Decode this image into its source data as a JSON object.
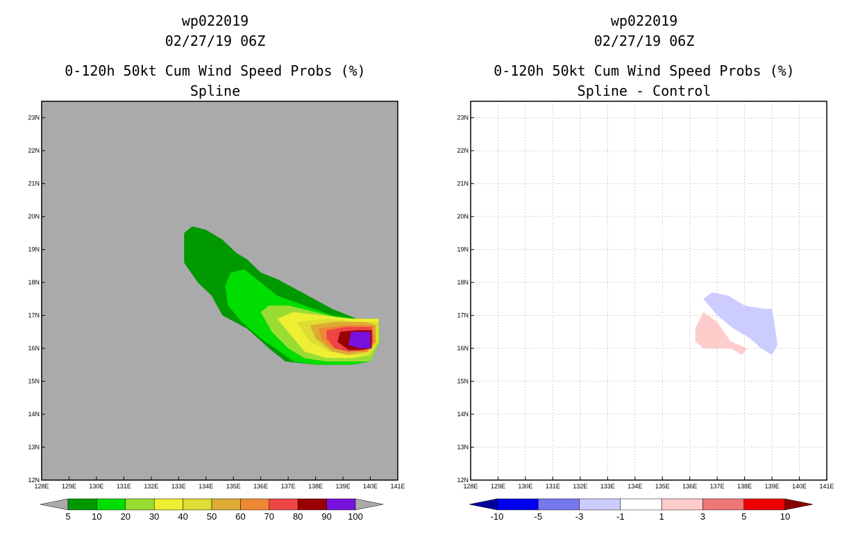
{
  "left_panel": {
    "title_line1": "wp022019",
    "title_line2": "02/27/19 06Z",
    "subtitle_line1": "0-120h 50kt Cum Wind Speed Probs (%)",
    "subtitle_line2": "Spline",
    "background_color": "#aaaaaa"
  },
  "right_panel": {
    "title_line1": "wp022019",
    "title_line2": "02/27/19 06Z",
    "subtitle_line1": "0-120h 50kt Cum Wind Speed Probs (%)",
    "subtitle_line2": "Spline - Control",
    "background_color": "#ffffff"
  },
  "chart_data": [
    {
      "type": "contour-map",
      "title": "wp022019 02/27/19 06Z",
      "subtitle": "0-120h 50kt Cum Wind Speed Probs (%) Spline",
      "x_ticks": [
        "128E",
        "129E",
        "130E",
        "131E",
        "132E",
        "133E",
        "134E",
        "135E",
        "136E",
        "137E",
        "138E",
        "139E",
        "140E",
        "141E"
      ],
      "y_ticks": [
        "12N",
        "13N",
        "14N",
        "15N",
        "16N",
        "17N",
        "18N",
        "19N",
        "20N",
        "21N",
        "22N",
        "23N"
      ],
      "xlim": [
        128,
        141
      ],
      "ylim": [
        12,
        23.5
      ],
      "colorbar": {
        "labels": [
          "5",
          "10",
          "20",
          "30",
          "40",
          "50",
          "60",
          "70",
          "80",
          "90",
          "100"
        ],
        "colors": [
          "#009900",
          "#00dd00",
          "#99dd33",
          "#eeee33",
          "#dddd33",
          "#ddaa33",
          "#ee8833",
          "#ee4444",
          "#990000",
          "#7711dd"
        ],
        "under_color": "#aaaaaa",
        "over_color": "#aaaaaa"
      },
      "contours": [
        {
          "level": 5,
          "color": "#009900",
          "points": [
            [
              133.2,
              18.6
            ],
            [
              133.2,
              19.5
            ],
            [
              133.5,
              19.7
            ],
            [
              134,
              19.6
            ],
            [
              134.6,
              19.3
            ],
            [
              135.1,
              18.9
            ],
            [
              135.5,
              18.7
            ],
            [
              136,
              18.3
            ],
            [
              136.6,
              18.1
            ],
            [
              137.5,
              17.7
            ],
            [
              138.6,
              17.2
            ],
            [
              139.5,
              16.9
            ],
            [
              140.3,
              16.9
            ],
            [
              140.35,
              16.2
            ],
            [
              140,
              15.6
            ],
            [
              139.3,
              15.5
            ],
            [
              138,
              15.5
            ],
            [
              136.9,
              15.6
            ],
            [
              136.3,
              16
            ],
            [
              135.5,
              16.6
            ],
            [
              134.6,
              17
            ],
            [
              134.2,
              17.6
            ],
            [
              133.7,
              18
            ]
          ]
        },
        {
          "level": 10,
          "color": "#00dd00",
          "points": [
            [
              134.7,
              17.9
            ],
            [
              134.9,
              18.3
            ],
            [
              135.4,
              18.4
            ],
            [
              136,
              18
            ],
            [
              136.6,
              17.6
            ],
            [
              137.6,
              17.3
            ],
            [
              138.6,
              17
            ],
            [
              139.5,
              16.9
            ],
            [
              140.3,
              16.9
            ],
            [
              140.35,
              16.2
            ],
            [
              140,
              15.6
            ],
            [
              139.3,
              15.5
            ],
            [
              138,
              15.5
            ],
            [
              137.2,
              15.6
            ],
            [
              136.7,
              15.9
            ],
            [
              136,
              16.3
            ],
            [
              135.3,
              16.8
            ],
            [
              134.8,
              17.3
            ]
          ]
        },
        {
          "level": 20,
          "color": "#99dd33",
          "points": [
            [
              136,
              17.1
            ],
            [
              136.3,
              17.3
            ],
            [
              137,
              17.3
            ],
            [
              138,
              17.1
            ],
            [
              139,
              16.9
            ],
            [
              140.3,
              16.9
            ],
            [
              140.35,
              16.2
            ],
            [
              140,
              15.6
            ],
            [
              139.3,
              15.6
            ],
            [
              138.4,
              15.6
            ],
            [
              137.6,
              15.7
            ],
            [
              137,
              16
            ],
            [
              136.4,
              16.5
            ]
          ]
        },
        {
          "level": 30,
          "color": "#eeee33",
          "points": [
            [
              136.6,
              16.9
            ],
            [
              137.2,
              17.1
            ],
            [
              138.2,
              17
            ],
            [
              139.3,
              16.9
            ],
            [
              140.3,
              16.9
            ],
            [
              140.3,
              16.2
            ],
            [
              140,
              15.8
            ],
            [
              139.3,
              15.7
            ],
            [
              138.4,
              15.7
            ],
            [
              137.6,
              15.9
            ],
            [
              137.1,
              16.4
            ]
          ]
        },
        {
          "level": 40,
          "color": "#dddd33",
          "points": [
            [
              137.3,
              16.8
            ],
            [
              138.4,
              16.9
            ],
            [
              139.6,
              16.8
            ],
            [
              140.3,
              16.8
            ],
            [
              140.3,
              16.2
            ],
            [
              140,
              15.8
            ],
            [
              139.3,
              15.8
            ],
            [
              138.5,
              15.9
            ],
            [
              137.8,
              16.2
            ]
          ]
        },
        {
          "level": 50,
          "color": "#ddaa33",
          "points": [
            [
              137.8,
              16.7
            ],
            [
              138.7,
              16.8
            ],
            [
              139.8,
              16.8
            ],
            [
              140.2,
              16.7
            ],
            [
              140.2,
              16.2
            ],
            [
              139.9,
              15.9
            ],
            [
              139.2,
              15.8
            ],
            [
              138.6,
              15.9
            ],
            [
              138,
              16.3
            ]
          ]
        },
        {
          "level": 60,
          "color": "#ee8833",
          "points": [
            [
              138.1,
              16.6
            ],
            [
              139,
              16.7
            ],
            [
              140.1,
              16.7
            ],
            [
              140.2,
              16.2
            ],
            [
              139.9,
              15.9
            ],
            [
              139.2,
              15.9
            ],
            [
              138.6,
              16
            ],
            [
              138.2,
              16.3
            ]
          ]
        },
        {
          "level": 70,
          "color": "#ee4444",
          "points": [
            [
              138.4,
              16.55
            ],
            [
              139.1,
              16.65
            ],
            [
              140.05,
              16.65
            ],
            [
              140.1,
              16.2
            ],
            [
              139.85,
              15.95
            ],
            [
              139.2,
              15.9
            ],
            [
              138.7,
              16
            ],
            [
              138.4,
              16.3
            ]
          ]
        },
        {
          "level": 80,
          "color": "#990000",
          "points": [
            [
              138.9,
              16.5
            ],
            [
              139.5,
              16.55
            ],
            [
              140.05,
              16.55
            ],
            [
              140.05,
              16
            ],
            [
              139.6,
              15.95
            ],
            [
              139.2,
              15.95
            ],
            [
              138.8,
              16.2
            ],
            [
              138.85,
              16.35
            ]
          ]
        },
        {
          "level": 90,
          "color": "#7711dd",
          "points": [
            [
              139.3,
              16.5
            ],
            [
              140,
              16.5
            ],
            [
              140,
              16
            ],
            [
              139.6,
              16
            ],
            [
              139.2,
              16.1
            ]
          ]
        }
      ]
    },
    {
      "type": "contour-map",
      "title": "wp022019 02/27/19 06Z",
      "subtitle": "0-120h 50kt Cum Wind Speed Probs (%) Spline - Control",
      "x_ticks": [
        "128E",
        "129E",
        "130E",
        "131E",
        "132E",
        "133E",
        "134E",
        "135E",
        "136E",
        "137E",
        "138E",
        "139E",
        "140E",
        "141E"
      ],
      "y_ticks": [
        "12N",
        "13N",
        "14N",
        "15N",
        "16N",
        "17N",
        "18N",
        "19N",
        "20N",
        "21N",
        "22N",
        "23N"
      ],
      "xlim": [
        128,
        141
      ],
      "ylim": [
        12,
        23.5
      ],
      "grid": true,
      "colorbar": {
        "labels": [
          "-10",
          "-5",
          "-3",
          "-1",
          "1",
          "3",
          "5",
          "10"
        ],
        "colors": [
          "#0000ee",
          "#7777ee",
          "#ccccff",
          "#ffffff",
          "#ffcccc",
          "#ee7777",
          "#ee0000"
        ],
        "under_color": "#000099",
        "over_color": "#880000"
      },
      "contours": [
        {
          "level": -3,
          "color": "#ccccff",
          "points": [
            [
              136.5,
              17.5
            ],
            [
              136.8,
              17.7
            ],
            [
              137.4,
              17.6
            ],
            [
              138,
              17.3
            ],
            [
              138.7,
              17.2
            ],
            [
              139,
              17.2
            ],
            [
              139.1,
              16.7
            ],
            [
              139.2,
              16.1
            ],
            [
              139,
              15.8
            ],
            [
              138.6,
              16
            ],
            [
              138.2,
              16.3
            ],
            [
              137.6,
              16.6
            ],
            [
              137,
              17
            ]
          ]
        },
        {
          "level": 3,
          "color": "#ffcccc",
          "points": [
            [
              136.2,
              16.6
            ],
            [
              136.5,
              17.1
            ],
            [
              137,
              16.8
            ],
            [
              137.5,
              16.2
            ],
            [
              137.8,
              16.1
            ],
            [
              138.1,
              16
            ],
            [
              137.9,
              15.8
            ],
            [
              137.5,
              16
            ],
            [
              136.5,
              16
            ],
            [
              136.2,
              16.2
            ]
          ]
        }
      ]
    }
  ]
}
